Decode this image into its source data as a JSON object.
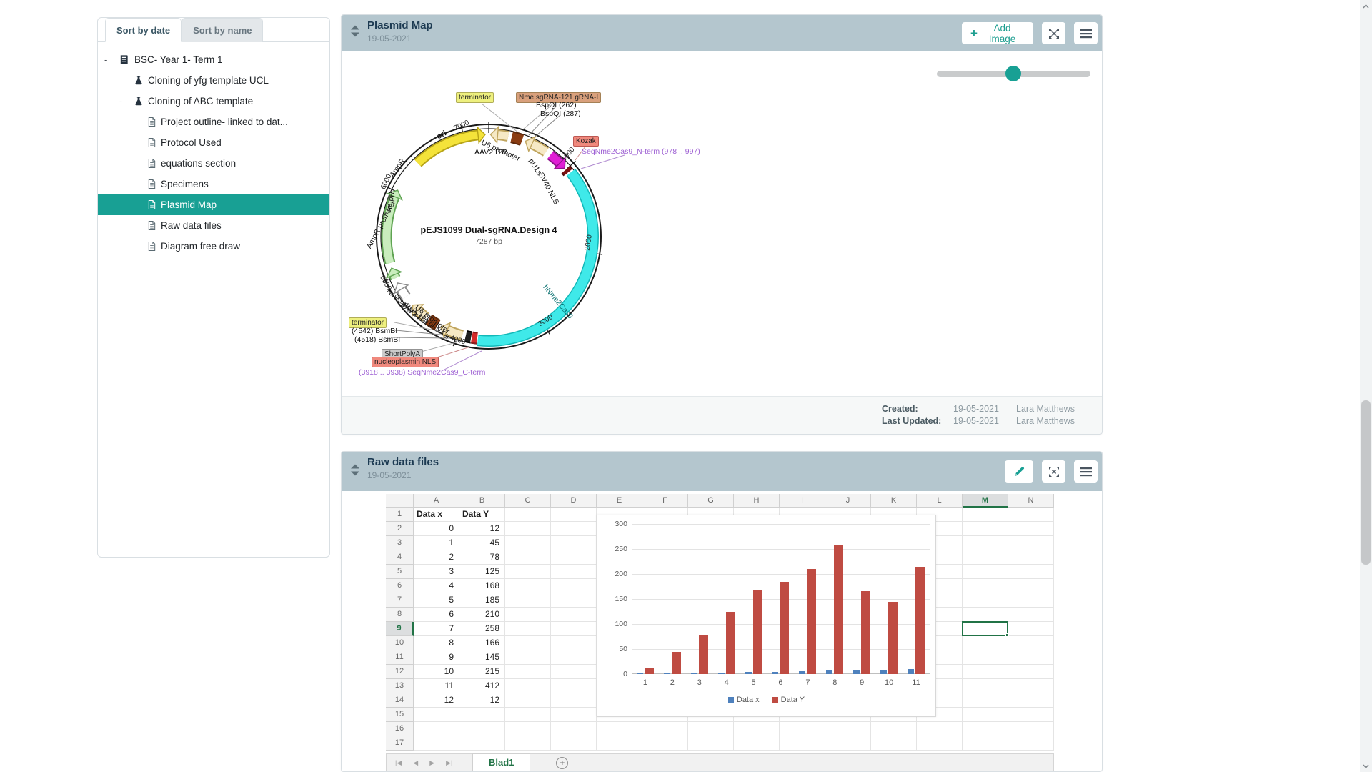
{
  "sidebar": {
    "tabs": [
      "Sort by date",
      "Sort by name"
    ],
    "tree": [
      {
        "label": "BSC- Year 1- Term 1",
        "icon": "notebook-icon",
        "level": 0,
        "expander": "-",
        "selected": false
      },
      {
        "label": "Cloning of yfg template UCL",
        "icon": "flask-icon",
        "level": 1,
        "expander": "",
        "selected": false
      },
      {
        "label": "Cloning of ABC template",
        "icon": "flask-icon",
        "level": 1,
        "expander": "-",
        "selected": false
      },
      {
        "label": "Project outline- linked to dat...",
        "icon": "document-icon",
        "level": 2,
        "expander": "",
        "selected": false
      },
      {
        "label": "Protocol Used",
        "icon": "document-icon",
        "level": 2,
        "expander": "",
        "selected": false
      },
      {
        "label": "equations section",
        "icon": "document-icon",
        "level": 2,
        "expander": "",
        "selected": false
      },
      {
        "label": "Specimens",
        "icon": "document-icon",
        "level": 2,
        "expander": "",
        "selected": false
      },
      {
        "label": "Plasmid Map",
        "icon": "document-icon",
        "level": 2,
        "expander": "",
        "selected": true
      },
      {
        "label": "Raw data files",
        "icon": "document-icon",
        "level": 2,
        "expander": "",
        "selected": false
      },
      {
        "label": "Diagram free draw",
        "icon": "document-icon",
        "level": 2,
        "expander": "",
        "selected": false
      }
    ]
  },
  "plasmid_panel": {
    "title": "Plasmid Map",
    "date": "19-05-2021",
    "add_image_label": "Add Image",
    "footer": {
      "created_label": "Created:",
      "created_date": "19-05-2021",
      "created_by": "Lara Matthews",
      "updated_label": "Last Updated:",
      "updated_date": "19-05-2021",
      "updated_by": "Lara Matthews"
    },
    "plasmid": {
      "name": "pEJS1099 Dual-sgRNA.Design 4",
      "size": "7287 bp",
      "ticks": [
        "1000",
        "2000",
        "3000",
        "4000",
        "5000",
        "6000",
        "7000"
      ],
      "tick_degrees": [
        49,
        99,
        148,
        198,
        247,
        296,
        346
      ],
      "labels": {
        "terminator_top": "terminator",
        "grna1": "Nme.sgRNA-121 gRNA-I",
        "bspqi262": "BspQI  (262)",
        "bspqi287": "BspQI  (287)",
        "kozak": "Kozak",
        "nterm": "SeqNme2Cas9_N-term  (978 .. 997)",
        "ori": "ori",
        "aav2itr_top": "AAV2 ITR",
        "u6_top": "U6 promoter",
        "pu1a": "pU1a",
        "sv40": "SV40 NLS",
        "cas9": "hNme2Cas9",
        "ampr1": "AmpR",
        "ampr2": "AmpR",
        "ampr_promoter": "AmpR promoter",
        "grna2": "Nme.sgRNA-121 gRNA-II",
        "aav2itr_bottom": "AAV2 ITR",
        "u6_bottom": "U6 promoter",
        "terminator_bottom": "terminator",
        "bsmbi4542": "(4542)  BsmBI",
        "bsmbi4518": "(4518)  BsmBI",
        "shortpolya": "ShortPolyA",
        "nucleoplasmin": "nucleoplasmin NLS",
        "cterm": "(3918 .. 3938)  SeqNme2Cas9_C-term"
      },
      "features": [
        {
          "name": "ori",
          "type": "arrow-cw",
          "start": 316,
          "end": 358,
          "fill": "#f4e33a",
          "stroke": "#b7a416"
        },
        {
          "name": "AAV2 ITR",
          "type": "arrow-ccw",
          "start": 1,
          "end": 11,
          "fill": "#f6e9c5",
          "stroke": "#c0a55e"
        },
        {
          "name": "Nme.sgRNA-121 gRNA-I",
          "type": "box",
          "start": 13,
          "end": 19,
          "fill": "#8a3c12",
          "stroke": "#5f2a0c"
        },
        {
          "name": "U6 promoter",
          "type": "arrow-ccw",
          "start": 21,
          "end": 34,
          "fill": "#f6e9c5",
          "stroke": "#c0a55e"
        },
        {
          "name": "pU1a",
          "type": "arrow-cw",
          "start": 37,
          "end": 48,
          "fill": "#e01fd5",
          "stroke": "#8e138a"
        },
        {
          "name": "Kozak",
          "type": "box",
          "start": 49,
          "end": 51,
          "fill": "#7c1212",
          "stroke": "#4d0b0b"
        },
        {
          "name": "hNme2Cas9",
          "type": "arc",
          "start": 52,
          "end": 186,
          "fill": "#3fe9e9",
          "stroke": "#12b8b8"
        },
        {
          "name": "nucleoplasmin NLS",
          "type": "box",
          "start": 186.5,
          "end": 189.5,
          "fill": "#d42b2b",
          "stroke": "#8e1d1d"
        },
        {
          "name": "ShortPolyA",
          "type": "box",
          "start": 190,
          "end": 193,
          "fill": "#1f1f1f",
          "stroke": "#000000"
        },
        {
          "name": "U6 promoter",
          "type": "arrow-cw",
          "start": 195,
          "end": 208,
          "fill": "#f6e9c5",
          "stroke": "#c0a55e"
        },
        {
          "name": "Nme.sgRNA-121 gRNA-II",
          "type": "box",
          "start": 210,
          "end": 216,
          "fill": "#8a3c12",
          "stroke": "#5f2a0c"
        },
        {
          "name": "AAV2 ITR",
          "type": "arrow-cw",
          "start": 218,
          "end": 228,
          "fill": "#f6e9c5",
          "stroke": "#c0a55e"
        },
        {
          "name": "AmpR promoter",
          "type": "arrow-cw",
          "start": 234,
          "end": 243,
          "fill": "#ffffff",
          "stroke": "#8a8a8a"
        },
        {
          "name": "AmpR",
          "type": "arrow-cw",
          "start": 246,
          "end": 252,
          "fill": "#c9edbd",
          "stroke": "#5fa352"
        },
        {
          "name": "AmpR",
          "type": "arrow-cw",
          "start": 255,
          "end": 297,
          "fill": "#c9edbd",
          "stroke": "#5fa352"
        }
      ]
    }
  },
  "rawdata_panel": {
    "title": "Raw data files",
    "date": "19-05-2021",
    "sheet": {
      "columns": [
        "A",
        "B",
        "C",
        "D",
        "E",
        "F",
        "G",
        "H",
        "I",
        "J",
        "K",
        "L",
        "M",
        "N"
      ],
      "row_count": 17,
      "selected_column": "M",
      "selected_row": 9,
      "rows": [
        [
          "Data x",
          "Data Y"
        ],
        [
          "0",
          "12"
        ],
        [
          "1",
          "45"
        ],
        [
          "2",
          "78"
        ],
        [
          "3",
          "125"
        ],
        [
          "4",
          "168"
        ],
        [
          "5",
          "185"
        ],
        [
          "6",
          "210"
        ],
        [
          "7",
          "258"
        ],
        [
          "8",
          "166"
        ],
        [
          "9",
          "145"
        ],
        [
          "10",
          "215"
        ],
        [
          "11",
          "412"
        ],
        [
          "12",
          "12"
        ]
      ],
      "active_tab": "Blad1",
      "nav_icons": [
        "first",
        "prev",
        "next",
        "last"
      ]
    }
  },
  "chart_data": {
    "type": "bar",
    "categories": [
      "1",
      "2",
      "3",
      "4",
      "5",
      "6",
      "7",
      "8",
      "9",
      "10",
      "11"
    ],
    "series": [
      {
        "name": "Data x",
        "color": "#4e81bd",
        "values": [
          0,
          1,
          2,
          3,
          4,
          5,
          6,
          7,
          8,
          9,
          10
        ]
      },
      {
        "name": "Data Y",
        "color": "#bf4b42",
        "values": [
          12,
          45,
          78,
          125,
          168,
          185,
          210,
          258,
          166,
          145,
          215
        ]
      }
    ],
    "ylim": [
      0,
      300
    ],
    "yticks": [
      0,
      50,
      100,
      150,
      200,
      250,
      300
    ],
    "grid": true,
    "legend_position": "bottom"
  },
  "colors": {
    "accent_teal": "#18a094",
    "header_bg": "#b4c6ce",
    "excel_green": "#217346",
    "bar_blue": "#4e81bd",
    "bar_red": "#bf4b42"
  }
}
